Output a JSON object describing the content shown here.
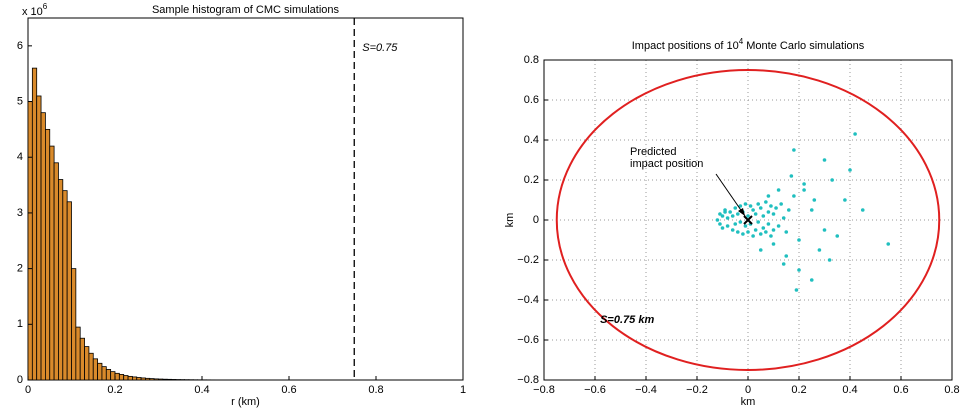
{
  "chart_data": [
    {
      "type": "histogram",
      "title": "Sample histogram of CMC simulations",
      "xlabel": "r (km)",
      "y_multiplier": {
        "base": "x 10",
        "exponent": "6"
      },
      "bins": [
        0,
        0.01,
        0.02,
        0.03,
        0.04,
        0.05,
        0.06,
        0.07,
        0.08,
        0.09,
        0.1,
        0.11,
        0.12,
        0.13,
        0.14,
        0.15,
        0.16,
        0.17,
        0.18,
        0.19,
        0.2,
        0.21,
        0.22,
        0.23,
        0.24,
        0.25,
        0.26,
        0.27,
        0.28,
        0.29,
        0.3,
        0.31,
        0.32,
        0.33,
        0.34,
        0.35,
        0.36,
        0.37,
        0.38,
        0.39,
        0.4,
        0.41,
        0.42,
        0.43,
        0.44,
        0.45,
        0.46,
        0.47,
        0.48,
        0.49,
        0.5
      ],
      "values": [
        5.0,
        5.6,
        5.1,
        4.8,
        4.5,
        4.2,
        3.9,
        3.6,
        3.4,
        3.2,
        2.0,
        0.95,
        0.75,
        0.6,
        0.48,
        0.38,
        0.3,
        0.24,
        0.19,
        0.15,
        0.12,
        0.1,
        0.08,
        0.065,
        0.055,
        0.045,
        0.037,
        0.03,
        0.025,
        0.02,
        0.017,
        0.014,
        0.012,
        0.01,
        0.008,
        0.007,
        0.006,
        0.005,
        0.004,
        0.0035,
        0.003,
        0.0025,
        0.002,
        0.0018,
        0.0015,
        0.0012,
        0.001,
        0.0008,
        0.0006,
        0.0005
      ],
      "color": "#d98a2b",
      "xlim": [
        0,
        1
      ],
      "xticks": [
        0,
        0.2,
        0.4,
        0.6,
        0.8,
        1
      ],
      "ylim": [
        0,
        6.5
      ],
      "yticks": [
        0,
        1,
        2,
        3,
        4,
        5,
        6
      ],
      "vline": {
        "x": 0.75,
        "label": "S=0.75"
      }
    },
    {
      "type": "scatter",
      "title": [
        "Impact positions of 10",
        "4",
        " Monte Carlo simulations"
      ],
      "xlabel": "km",
      "ylabel": "km",
      "color": "#20bfbf",
      "x": [
        -0.12,
        -0.11,
        -0.1,
        -0.1,
        -0.09,
        -0.08,
        -0.08,
        -0.07,
        -0.06,
        -0.06,
        -0.05,
        -0.05,
        -0.04,
        -0.04,
        -0.03,
        -0.03,
        -0.02,
        -0.02,
        -0.01,
        -0.01,
        0,
        0,
        0.01,
        0.01,
        0.02,
        0.02,
        0.03,
        0.03,
        0.04,
        0.04,
        0.05,
        0.05,
        0.06,
        0.06,
        0.07,
        0.07,
        0.08,
        0.08,
        0.09,
        0.09,
        0.1,
        0.1,
        0.11,
        0.12,
        0.13,
        0.14,
        0.15,
        0.16,
        -0.11,
        -0.09,
        0.18,
        0.2,
        0.22,
        0.25,
        0.28,
        0.3,
        0.33,
        0.35,
        0.38,
        0.42,
        0.45,
        0.55,
        0.2,
        0.22,
        0.15,
        0.17,
        0.25,
        0.3,
        0.12,
        0.1,
        0.05,
        0.08,
        0.18,
        0.26,
        0.32,
        0.4,
        0.14,
        0.19
      ],
      "values": [
        0,
        0.03,
        -0.04,
        0.02,
        0.05,
        -0.03,
        0.01,
        0.04,
        -0.05,
        0.02,
        0.06,
        -0.02,
        0.03,
        -0.06,
        0.07,
        -0.01,
        0.04,
        -0.07,
        0.08,
        -0.03,
        0.02,
        -0.06,
        0.07,
        -0.02,
        0.05,
        -0.08,
        0.03,
        -0.05,
        0.08,
        -0.01,
        0.06,
        -0.07,
        0.02,
        -0.04,
        0.09,
        -0.06,
        0.04,
        -0.02,
        0.07,
        -0.08,
        0.03,
        -0.05,
        0.06,
        -0.03,
        0.08,
        0.01,
        -0.06,
        0.05,
        -0.02,
        0.04,
        0.12,
        -0.1,
        0.18,
        0.05,
        -0.15,
        0.3,
        0.2,
        -0.08,
        0.1,
        0.43,
        0.05,
        -0.12,
        -0.25,
        0.15,
        -0.18,
        0.22,
        -0.3,
        -0.05,
        0.15,
        -0.12,
        -0.15,
        0.12,
        0.35,
        0.1,
        -0.2,
        0.25,
        -0.22,
        -0.35
      ],
      "xlim": [
        -0.8,
        0.8
      ],
      "xticks": [
        {
          "value": -0.8,
          "label": "−0.8"
        },
        {
          "value": -0.6,
          "label": "−0.6"
        },
        {
          "value": -0.4,
          "label": "−0.4"
        },
        {
          "value": -0.2,
          "label": "−0.2"
        },
        0,
        0.2,
        0.4,
        0.6,
        0.8
      ],
      "ylim": [
        -0.8,
        0.8
      ],
      "yticks": [
        {
          "value": -0.8,
          "label": "−0.8"
        },
        {
          "value": -0.6,
          "label": "−0.6"
        },
        {
          "value": -0.4,
          "label": "−0.4"
        },
        {
          "value": -0.2,
          "label": "−0.2"
        },
        0,
        0.2,
        0.4,
        0.6,
        0.8
      ],
      "grid": true,
      "circle": {
        "radius": 0.75,
        "label": "S=0.75 km",
        "color": "#e02020"
      },
      "marker": {
        "x": 0,
        "y": 0,
        "label": [
          "Predicted",
          "impact position"
        ]
      }
    }
  ]
}
